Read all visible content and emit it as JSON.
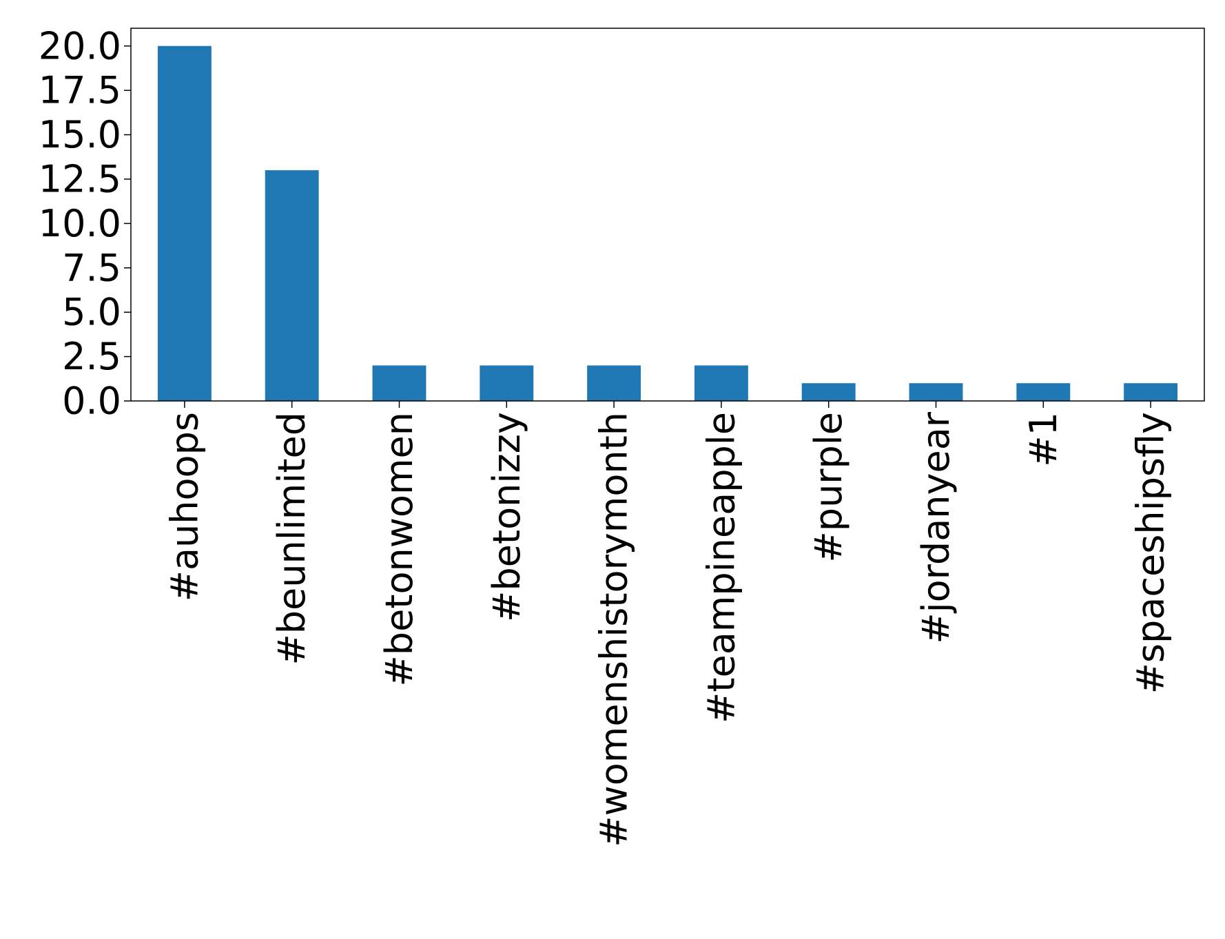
{
  "chart_data": {
    "type": "bar",
    "title": "",
    "xlabel": "",
    "ylabel": "",
    "categories": [
      "#auhoops",
      "#beunlimited",
      "#betonwomen",
      "#betonizzy",
      "#womenshistorymonth",
      "#teampineapple",
      "#purple",
      "#jordanyear",
      "#1",
      "#spaceshipsfly"
    ],
    "values": [
      20,
      13,
      2,
      2,
      2,
      2,
      1,
      1,
      1,
      1
    ],
    "ylim": [
      0,
      21
    ],
    "yticks": [
      "0.0",
      "2.5",
      "5.0",
      "7.5",
      "10.0",
      "12.5",
      "15.0",
      "17.5",
      "20.0"
    ],
    "ytick_values": [
      0,
      2.5,
      5,
      7.5,
      10,
      12.5,
      15,
      17.5,
      20
    ],
    "bar_color": "#1f77b4",
    "grid": false,
    "legend": "none"
  }
}
